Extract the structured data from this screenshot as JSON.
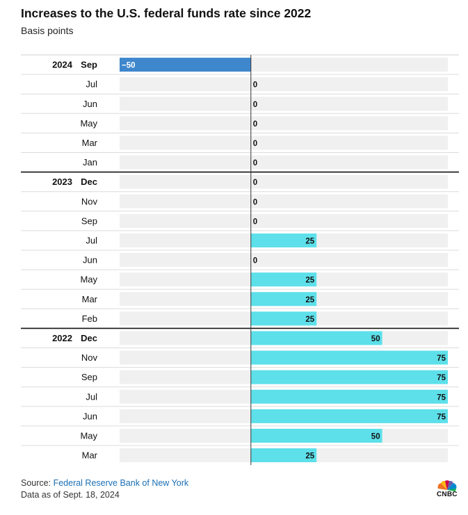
{
  "title": "Increases to the U.S. federal funds rate since 2022",
  "subtitle": "Basis points",
  "footer": {
    "source_label": "Source:",
    "source_text": "Federal Reserve Bank of New York",
    "date_note": "Data as of Sept. 18, 2024"
  },
  "logo": {
    "text": "CNBC",
    "icon": "cnbc-peacock-icon"
  },
  "colors": {
    "positive": "#5de0ea",
    "negative": "#3e87cc",
    "track": "#f0f0f0"
  },
  "chart_data": {
    "type": "bar",
    "orientation": "horizontal",
    "xlim": [
      -50,
      75
    ],
    "categories": [
      {
        "year": "2024",
        "month": "Sep",
        "value": -50,
        "label": "−50"
      },
      {
        "year": "",
        "month": "Jul",
        "value": 0,
        "label": "0"
      },
      {
        "year": "",
        "month": "Jun",
        "value": 0,
        "label": "0"
      },
      {
        "year": "",
        "month": "May",
        "value": 0,
        "label": "0"
      },
      {
        "year": "",
        "month": "Mar",
        "value": 0,
        "label": "0"
      },
      {
        "year": "",
        "month": "Jan",
        "value": 0,
        "label": "0"
      },
      {
        "year": "2023",
        "month": "Dec",
        "value": 0,
        "label": "0"
      },
      {
        "year": "",
        "month": "Nov",
        "value": 0,
        "label": "0"
      },
      {
        "year": "",
        "month": "Sep",
        "value": 0,
        "label": "0"
      },
      {
        "year": "",
        "month": "Jul",
        "value": 25,
        "label": "25"
      },
      {
        "year": "",
        "month": "Jun",
        "value": 0,
        "label": "0"
      },
      {
        "year": "",
        "month": "May",
        "value": 25,
        "label": "25"
      },
      {
        "year": "",
        "month": "Mar",
        "value": 25,
        "label": "25"
      },
      {
        "year": "",
        "month": "Feb",
        "value": 25,
        "label": "25"
      },
      {
        "year": "2022",
        "month": "Dec",
        "value": 50,
        "label": "50"
      },
      {
        "year": "",
        "month": "Nov",
        "value": 75,
        "label": "75"
      },
      {
        "year": "",
        "month": "Sep",
        "value": 75,
        "label": "75"
      },
      {
        "year": "",
        "month": "Jul",
        "value": 75,
        "label": "75"
      },
      {
        "year": "",
        "month": "Jun",
        "value": 75,
        "label": "75"
      },
      {
        "year": "",
        "month": "May",
        "value": 50,
        "label": "50"
      },
      {
        "year": "",
        "month": "Mar",
        "value": 25,
        "label": "25"
      }
    ]
  }
}
